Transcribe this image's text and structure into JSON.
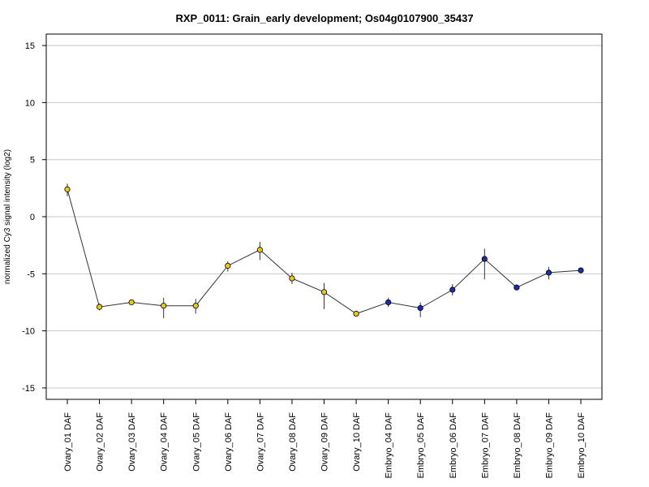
{
  "chart_data": {
    "type": "line",
    "title": "RXP_0011: Grain_early development; Os04g0107900_35437",
    "ylabel": "normalized Cy3 signal intensity (log2)",
    "xlabel": "",
    "ylim": [
      -16,
      16
    ],
    "yticks": [
      -15,
      -10,
      -5,
      0,
      5,
      10,
      15
    ],
    "grid": true,
    "categories": [
      "Ovary_01 DAF",
      "Ovary_02 DAF",
      "Ovary_03 DAF",
      "Ovary_04 DAF",
      "Ovary_05 DAF",
      "Ovary_06 DAF",
      "Ovary_07 DAF",
      "Ovary_08 DAF",
      "Ovary_09 DAF",
      "Ovary_10 DAF",
      "Embryo_04 DAF",
      "Embryo_05 DAF",
      "Embryo_06 DAF",
      "Embryo_07 DAF",
      "Embryo_08 DAF",
      "Embryo_09 DAF",
      "Embryo_10 DAF"
    ],
    "values": [
      2.4,
      -7.9,
      -7.5,
      -7.8,
      -7.8,
      -4.3,
      -2.9,
      -5.4,
      -6.6,
      -8.5,
      -7.5,
      -8.0,
      -6.4,
      -3.7,
      -6.2,
      -4.9,
      -4.7
    ],
    "err_low": [
      1.8,
      -8.2,
      -7.7,
      -8.9,
      -8.5,
      -4.8,
      -3.8,
      -5.9,
      -8.1,
      -8.7,
      -7.9,
      -8.8,
      -6.9,
      -5.5,
      -6.4,
      -5.5,
      -4.8
    ],
    "err_high": [
      2.9,
      -7.6,
      -7.3,
      -7.1,
      -7.2,
      -3.9,
      -2.2,
      -4.9,
      -5.8,
      -8.3,
      -7.1,
      -7.5,
      -5.9,
      -2.8,
      -6.0,
      -4.4,
      -4.5
    ],
    "point_colors": [
      "#e8c81a",
      "#e8c81a",
      "#e8c81a",
      "#e8c81a",
      "#e8c81a",
      "#e8c81a",
      "#e8c81a",
      "#e8c81a",
      "#e8c81a",
      "#e8c81a",
      "#1a2fa8",
      "#1a2fa8",
      "#1a2fa8",
      "#1a2fa8",
      "#1a2fa8",
      "#1a2fa8",
      "#1a2fa8"
    ],
    "line_color": "#333333"
  }
}
